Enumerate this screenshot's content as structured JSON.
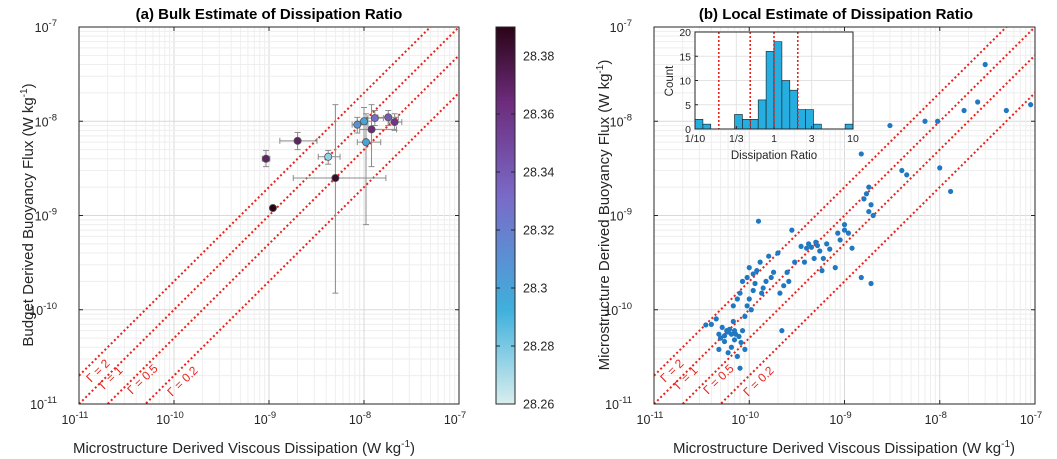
{
  "colors": {
    "red": "#e8231b",
    "points": "#1f78c1",
    "bars": "#27aee0",
    "axis": "#262626",
    "grid": "#e6e6e6"
  },
  "chart_data": [
    {
      "type": "scatter",
      "title": "(a) Bulk Estimate of Dissipation Ratio",
      "xlabel": "Microstructure Derived Viscous Dissipation (W kg",
      "ylabel": "Budget Derived Buoyancy Flux (W kg",
      "scale": "log",
      "xlim": [
        1e-11,
        1e-07
      ],
      "ylim": [
        1e-11,
        1e-07
      ],
      "xticks": [
        "10",
        "10",
        "10",
        "10",
        "10"
      ],
      "xtick_exp": [
        "-11",
        "-10",
        "-9",
        "-8",
        "-7"
      ],
      "yticks": [
        "10",
        "10",
        "10",
        "10",
        "10"
      ],
      "ytick_exp": [
        "-11",
        "-10",
        "-9",
        "-8",
        "-7"
      ],
      "gamma_lines": [
        {
          "label": "Γ = 2",
          "ratio": 2
        },
        {
          "label": "Γ = 1",
          "ratio": 1
        },
        {
          "label": "Γ = 0.5",
          "ratio": 0.5
        },
        {
          "label": "Γ = 0.2",
          "ratio": 0.2
        }
      ],
      "colorbar": {
        "min": 28.26,
        "max": 28.39,
        "ticks": [
          "28.26",
          "28.28",
          "28.3",
          "28.32",
          "28.34",
          "28.36",
          "28.38"
        ]
      },
      "points": [
        {
          "x": 9.3e-10,
          "y": 4e-09,
          "c": 28.37,
          "xerr": [
            8.5e-10,
            1.02e-09
          ],
          "yerr": [
            3.3e-09,
            4.9e-09
          ]
        },
        {
          "x": 2e-09,
          "y": 6.2e-09,
          "c": 28.37,
          "xerr": [
            1.3e-09,
            3.2e-09
          ],
          "yerr": [
            5e-09,
            7.6e-09
          ]
        },
        {
          "x": 1.1e-09,
          "y": 1.2e-09,
          "c": 28.39
        },
        {
          "x": 4.2e-09,
          "y": 4.2e-09,
          "c": 28.275,
          "xerr": [
            3.3e-09,
            5.6e-09
          ],
          "yerr": [
            3.5e-09,
            4.9e-09
          ]
        },
        {
          "x": 5e-09,
          "y": 2.5e-09,
          "c": 28.385,
          "xerr": [
            1.8e-09,
            1.7e-08
          ],
          "yerr": [
            1.5e-10,
            1.5e-08
          ]
        },
        {
          "x": 8.5e-09,
          "y": 9.2e-09,
          "c": 28.31,
          "xerr": [
            7.5e-09,
            1.1e-08
          ],
          "yerr": [
            7.5e-09,
            1.1e-08
          ]
        },
        {
          "x": 1e-08,
          "y": 1e-08,
          "c": 28.3,
          "xerr": [
            8.5e-09,
            1.2e-08
          ],
          "yerr": [
            6e-09,
            1.4e-08
          ]
        },
        {
          "x": 1.05e-08,
          "y": 6e-09,
          "c": 28.3,
          "xerr": [
            8.5e-09,
            1.5e-08
          ],
          "yerr": [
            8e-10,
            1.2e-08
          ]
        },
        {
          "x": 1.2e-08,
          "y": 8.2e-09,
          "c": 28.365,
          "xerr": [
            9e-09,
            2.2e-08
          ],
          "yerr": [
            3.3e-09,
            1.5e-08
          ]
        },
        {
          "x": 1.3e-08,
          "y": 1.08e-08,
          "c": 28.33,
          "xerr": [
            1.1e-08,
            1.6e-08
          ],
          "yerr": [
            9e-09,
            1.3e-08
          ]
        },
        {
          "x": 1.8e-08,
          "y": 1.1e-08,
          "c": 28.34,
          "xerr": [
            1.4e-08,
            2.3e-08
          ],
          "yerr": [
            9e-09,
            1.3e-08
          ]
        },
        {
          "x": 2.1e-08,
          "y": 9.8e-09,
          "c": 28.36,
          "xerr": [
            1.8e-08,
            2.5e-08
          ],
          "yerr": [
            8e-09,
            1.2e-08
          ]
        }
      ]
    },
    {
      "type": "scatter",
      "title": "(b) Local Estimate of Dissipation Ratio",
      "xlabel": "Microstructure Derived Viscous Dissipation (W kg",
      "ylabel": "Microstructure Derived Buoyancy Flux (W kg",
      "scale": "log",
      "xlim": [
        1e-11,
        1e-07
      ],
      "ylim": [
        1e-11,
        1e-07
      ],
      "xticks": [
        "10",
        "10",
        "10",
        "10",
        "10"
      ],
      "xtick_exp": [
        "-11",
        "-10",
        "-9",
        "-8",
        "-7"
      ],
      "yticks": [
        "10",
        "10",
        "10",
        "10",
        "10"
      ],
      "ytick_exp": [
        "-11",
        "-10",
        "-9",
        "-8",
        "-7"
      ],
      "gamma_lines": [
        {
          "label": "Γ = 2",
          "ratio": 2
        },
        {
          "label": "Γ = 1",
          "ratio": 1
        },
        {
          "label": "Γ = 0.5",
          "ratio": 0.5
        },
        {
          "label": "Γ = 0.2",
          "ratio": 0.2
        }
      ],
      "points": [
        [
          3.5e-11,
          6.9e-11
        ],
        [
          4e-11,
          7e-11
        ],
        [
          4.5e-11,
          8e-11
        ],
        [
          4.8e-11,
          5.5e-11
        ],
        [
          4.8e-11,
          3.8e-11
        ],
        [
          5e-11,
          5e-11
        ],
        [
          5.2e-11,
          6.5e-11
        ],
        [
          5.5e-11,
          4.6e-11
        ],
        [
          5.5e-11,
          5.3e-11
        ],
        [
          5.8e-11,
          6e-11
        ],
        [
          6e-11,
          5.8e-11
        ],
        [
          6e-11,
          3.5e-11
        ],
        [
          6.2e-11,
          6.2e-11
        ],
        [
          6.5e-11,
          5.5e-11
        ],
        [
          6.5e-11,
          4e-11
        ],
        [
          6.8e-11,
          7.5e-11
        ],
        [
          6.8e-11,
          1.1e-10
        ],
        [
          7e-11,
          6e-11
        ],
        [
          7e-11,
          4.8e-11
        ],
        [
          7.2e-11,
          5.5e-11
        ],
        [
          7.5e-11,
          1.3e-10
        ],
        [
          7.5e-11,
          3.2e-11
        ],
        [
          7.8e-11,
          5.2e-11
        ],
        [
          8e-11,
          1.5e-10
        ],
        [
          8e-11,
          2.4e-11
        ],
        [
          8.2e-11,
          4.5e-11
        ],
        [
          8.5e-11,
          2e-10
        ],
        [
          8.5e-11,
          6e-11
        ],
        [
          9e-11,
          3.8e-11
        ],
        [
          9e-11,
          8.5e-11
        ],
        [
          9.5e-11,
          2.2e-10
        ],
        [
          9.5e-11,
          1.1e-10
        ],
        [
          1e-10,
          2.8e-10
        ],
        [
          1e-10,
          1.3e-10
        ],
        [
          1.05e-10,
          1e-10
        ],
        [
          1.1e-10,
          2.4e-10
        ],
        [
          1.1e-10,
          1.6e-10
        ],
        [
          1.15e-10,
          1.9e-10
        ],
        [
          1.2e-10,
          2.6e-10
        ],
        [
          1.25e-10,
          8.7e-10
        ],
        [
          1.3e-10,
          3.2e-10
        ],
        [
          1.35e-10,
          1.5e-10
        ],
        [
          1.4e-10,
          1.7e-10
        ],
        [
          1.5e-10,
          2e-10
        ],
        [
          1.6e-10,
          3.7e-10
        ],
        [
          1.7e-10,
          2.2e-10
        ],
        [
          1.8e-10,
          2.5e-10
        ],
        [
          2e-10,
          4e-10
        ],
        [
          2.1e-10,
          1.5e-10
        ],
        [
          2.2e-10,
          6e-11
        ],
        [
          2.3e-10,
          1.8e-10
        ],
        [
          2.5e-10,
          2.5e-10
        ],
        [
          2.6e-10,
          2e-10
        ],
        [
          2.8e-10,
          7e-10
        ],
        [
          3e-10,
          3.2e-10
        ],
        [
          3.5e-10,
          4.7e-10
        ],
        [
          3.8e-10,
          3.2e-10
        ],
        [
          4e-10,
          4.5e-10
        ],
        [
          4.2e-10,
          5e-10
        ],
        [
          4.5e-10,
          4.6e-10
        ],
        [
          4.8e-10,
          3.5e-10
        ],
        [
          5e-10,
          5.2e-10
        ],
        [
          5.2e-10,
          4.8e-10
        ],
        [
          5.5e-10,
          4.2e-10
        ],
        [
          5.8e-10,
          2.6e-10
        ],
        [
          6e-10,
          3.5e-10
        ],
        [
          6.5e-10,
          5e-10
        ],
        [
          7e-10,
          4.4e-10
        ],
        [
          8e-10,
          2.8e-10
        ],
        [
          8.5e-10,
          6.5e-10
        ],
        [
          9e-10,
          5.5e-10
        ],
        [
          1e-09,
          8e-10
        ],
        [
          1e-09,
          7e-10
        ],
        [
          1.1e-09,
          6.5e-10
        ],
        [
          1.2e-09,
          4.5e-10
        ],
        [
          1.5e-09,
          2.2e-10
        ],
        [
          1.6e-09,
          1.5e-09
        ],
        [
          1.7e-09,
          1.7e-09
        ],
        [
          1.8e-09,
          2e-09
        ],
        [
          1.8e-09,
          1.1e-09
        ],
        [
          1.9e-09,
          1.3e-09
        ],
        [
          1.9e-09,
          1.9e-10
        ],
        [
          2e-09,
          1e-09
        ],
        [
          3e-09,
          9e-09
        ],
        [
          1.5e-09,
          4.5e-09
        ],
        [
          4e-09,
          3e-09
        ],
        [
          4.5e-09,
          2.7e-09
        ],
        [
          7e-09,
          1e-08
        ],
        [
          9.5e-09,
          1e-08
        ],
        [
          1e-08,
          3.2e-09
        ],
        [
          1.3e-08,
          1.8e-09
        ],
        [
          1.8e-08,
          1.3e-08
        ],
        [
          2.5e-08,
          1.6e-08
        ],
        [
          3e-08,
          4e-08
        ],
        [
          5e-08,
          1.3e-08
        ],
        [
          9e-08,
          1.5e-08
        ]
      ],
      "inset": {
        "type": "bar",
        "xlabel": "Dissipation Ratio",
        "ylabel": "Count",
        "xscale": "log",
        "xlim": [
          0.1,
          10
        ],
        "ylim": [
          0,
          20
        ],
        "xticks": [
          {
            "v": 0.1,
            "label": "1/10"
          },
          {
            "v": 0.3333,
            "label": "1/3"
          },
          {
            "v": 1,
            "label": "1"
          },
          {
            "v": 3,
            "label": "3"
          },
          {
            "v": 10,
            "label": "10"
          }
        ],
        "yticks": [
          "0",
          "5",
          "10",
          "15",
          "20"
        ],
        "bin_edges": [
          0.1,
          0.1259,
          0.1585,
          0.1995,
          0.2512,
          0.3162,
          0.3981,
          0.5012,
          0.631,
          0.7943,
          1.0,
          1.259,
          1.585,
          1.995,
          2.512,
          3.162,
          3.981,
          5.012,
          6.31,
          7.943,
          10.0
        ],
        "counts": [
          2,
          1,
          0,
          0,
          0,
          3,
          2,
          2,
          6,
          16,
          18,
          10,
          8,
          4,
          4,
          1,
          0,
          0,
          0,
          1
        ],
        "vlines": [
          0.2,
          0.5,
          1,
          2
        ]
      }
    }
  ]
}
